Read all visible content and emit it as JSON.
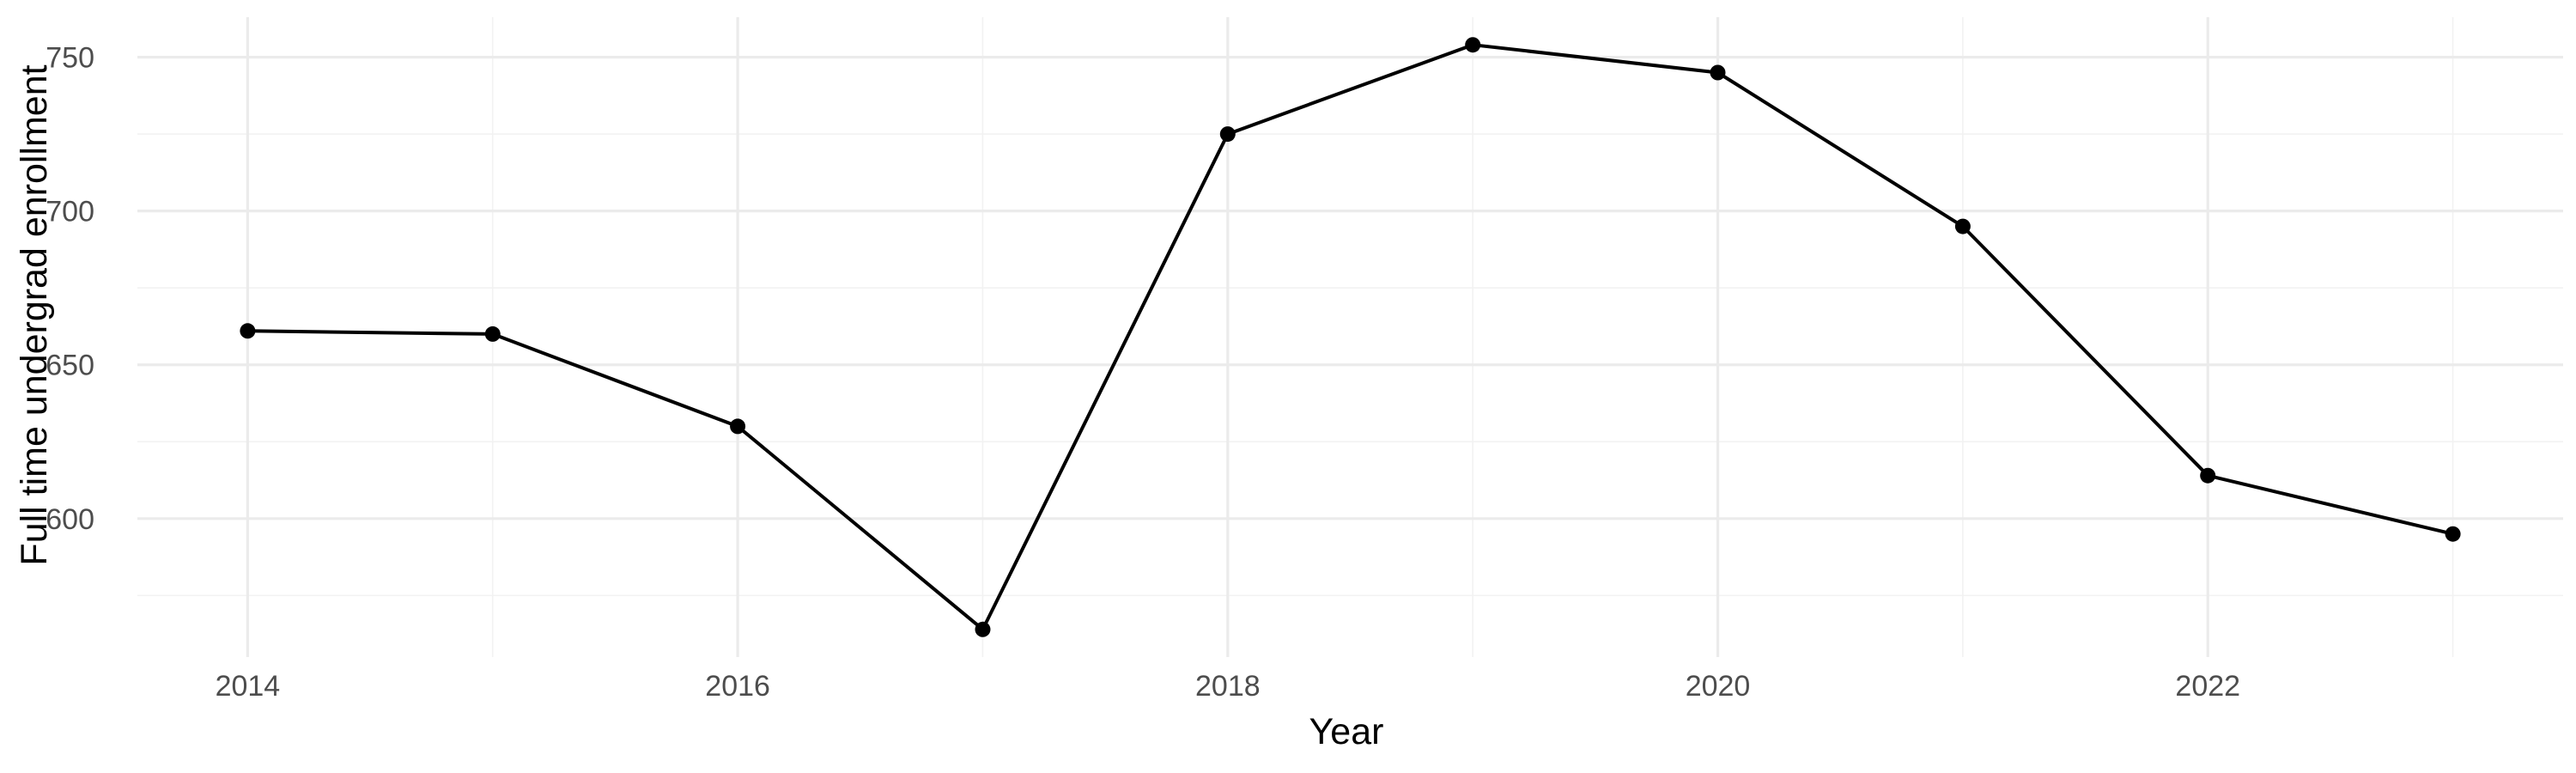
{
  "chart_data": {
    "type": "line",
    "xlabel": "Year",
    "ylabel": "Full time undergrad enrollment",
    "x": [
      2014,
      2015,
      2016,
      2017,
      2018,
      2019,
      2020,
      2021,
      2022,
      2023
    ],
    "series": [
      {
        "values": [
          661,
          660,
          630,
          564,
          725,
          754,
          745,
          695,
          614,
          595
        ],
        "color": "#000000"
      }
    ],
    "xlim": [
      2013.55,
      2023.45
    ],
    "ylim": [
      555,
      763
    ],
    "x_major_ticks": [
      2014,
      2016,
      2018,
      2020,
      2022
    ],
    "x_minor_ticks": [
      2015,
      2017,
      2019,
      2021,
      2023
    ],
    "y_major_ticks": [
      600,
      650,
      700,
      750
    ],
    "y_minor_ticks": [
      575,
      625,
      675,
      725
    ],
    "x_tick_labels": [
      "2014",
      "2016",
      "2018",
      "2020",
      "2022"
    ],
    "y_tick_labels": [
      "600",
      "650",
      "700",
      "750"
    ],
    "grid": true,
    "legend": "none",
    "background": "#ffffff",
    "grid_color": "#ebebeb"
  }
}
